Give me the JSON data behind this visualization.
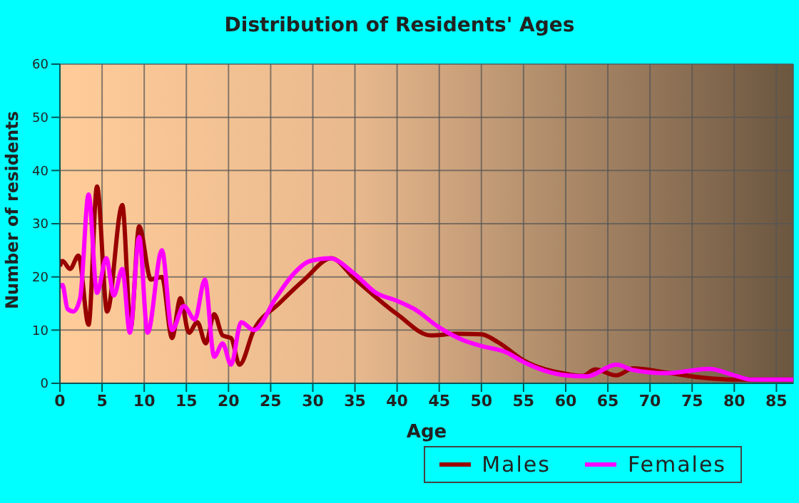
{
  "chart_data": {
    "type": "line",
    "title": "Distribution of Residents' Ages",
    "xlabel": "Age",
    "ylabel": "Number of residents",
    "xlim": [
      0,
      87
    ],
    "xticks": [
      0,
      5,
      10,
      15,
      20,
      25,
      30,
      35,
      40,
      45,
      50,
      55,
      60,
      65,
      70,
      75,
      80,
      85
    ],
    "ylim": [
      0,
      60
    ],
    "yticks": [
      0,
      10,
      20,
      30,
      40,
      50,
      60
    ],
    "grid": true,
    "legend": "bottom",
    "marker": "none",
    "line_style": "solid",
    "series": [
      {
        "name": "Males",
        "color": "#990000",
        "x": [
          0,
          0.3,
          1.2,
          2.2,
          3.4,
          4.4,
          5.6,
          7.4,
          8.4,
          9.4,
          10.8,
          12.1,
          13.3,
          14.3,
          15.3,
          16.3,
          17.3,
          18.3,
          19.3,
          20.3,
          21.3,
          23,
          26,
          29,
          32.2,
          35,
          40,
          44,
          47,
          50,
          52,
          55,
          60,
          62,
          63.5,
          66,
          68,
          72,
          76,
          80,
          87
        ],
        "values": [
          22,
          23,
          21.5,
          24,
          11,
          37,
          13.5,
          33.5,
          10.5,
          29.5,
          19.5,
          20,
          8.5,
          16,
          9.5,
          11.5,
          7.5,
          13,
          9,
          8.5,
          3.5,
          10,
          15,
          19.5,
          23.5,
          19.6,
          13,
          9,
          9.3,
          9.2,
          7.7,
          4.3,
          1.8,
          1.4,
          2.6,
          1.5,
          2.8,
          2,
          1.1,
          0.7,
          0.7
        ]
      },
      {
        "name": "Females",
        "color": "#ff00ff",
        "x": [
          0,
          0.3,
          0.9,
          1.6,
          2.4,
          3.4,
          4.4,
          5.5,
          6.4,
          7.4,
          8.3,
          9.4,
          10.4,
          12.1,
          13.3,
          14.7,
          16,
          17.2,
          18.3,
          19.3,
          20.3,
          21.5,
          23,
          25.6,
          27.4,
          29.7,
          32,
          35,
          37.5,
          40,
          42,
          45,
          48,
          50,
          53,
          55,
          60,
          62.5,
          66,
          68,
          72,
          77,
          80,
          82,
          87
        ],
        "values": [
          18,
          18.5,
          14,
          13.5,
          16,
          35.5,
          17,
          23.5,
          16.5,
          21.5,
          9.5,
          27.5,
          9.5,
          25,
          10,
          14.5,
          12,
          19.5,
          5,
          7.5,
          3.5,
          11.5,
          10,
          16,
          20,
          23,
          23.5,
          20.5,
          17,
          15.5,
          14,
          10.5,
          8,
          7,
          5.8,
          4,
          1.5,
          1.3,
          3.5,
          2.5,
          1.9,
          2.7,
          1.5,
          0.7,
          0.7
        ]
      }
    ]
  }
}
